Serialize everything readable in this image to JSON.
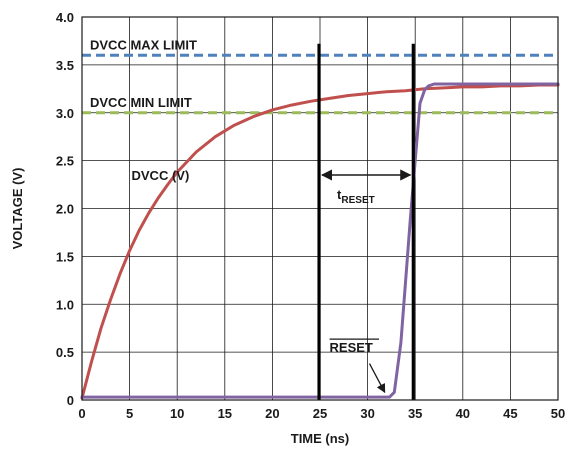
{
  "chart_data": {
    "type": "line",
    "xlabel": "TIME (ns)",
    "ylabel": "VOLTAGE (V)",
    "xlim": [
      0,
      50
    ],
    "ylim": [
      0,
      4.0
    ],
    "x_ticks": [
      "0",
      "5",
      "10",
      "15",
      "20",
      "25",
      "30",
      "35",
      "40",
      "45",
      "50"
    ],
    "y_ticks": [
      "0",
      "0.5",
      "1.0",
      "1.5",
      "2.0",
      "2.5",
      "3.0",
      "3.5",
      "4.0"
    ],
    "grid": true,
    "series": [
      {
        "name": "DVCC (V)",
        "color": "#c0504d",
        "x": [
          0,
          1,
          2,
          3,
          4,
          5,
          6,
          7,
          8,
          9,
          10,
          12,
          14,
          16,
          18,
          20,
          22,
          24,
          26,
          28,
          30,
          32,
          34,
          36,
          38,
          40,
          42,
          44,
          46,
          48,
          50
        ],
        "y": [
          0.02,
          0.4,
          0.75,
          1.05,
          1.32,
          1.56,
          1.77,
          1.95,
          2.11,
          2.25,
          2.38,
          2.59,
          2.75,
          2.87,
          2.96,
          3.03,
          3.08,
          3.12,
          3.15,
          3.18,
          3.2,
          3.22,
          3.23,
          3.25,
          3.26,
          3.27,
          3.27,
          3.28,
          3.28,
          3.29,
          3.29
        ]
      },
      {
        "name": "RESET",
        "color": "#8064a2",
        "x": [
          0,
          32.3,
          32.8,
          33.5,
          34.5,
          35.5,
          36.0,
          36.4,
          37.0,
          40,
          45,
          50
        ],
        "y": [
          0.03,
          0.03,
          0.08,
          0.6,
          1.9,
          3.1,
          3.24,
          3.28,
          3.3,
          3.3,
          3.3,
          3.3
        ]
      }
    ],
    "reference_lines": [
      {
        "label": "DVCC MAX LIMIT",
        "y": 3.6,
        "color": "#4f81bd",
        "style": "dashed"
      },
      {
        "label": "DVCC MIN LIMIT",
        "y": 3.0,
        "color": "#9bbb59",
        "style": "dashed"
      }
    ],
    "markers": [
      {
        "x": 24.9,
        "y_top": 3.72
      },
      {
        "x": 34.8,
        "y_top": 3.72
      }
    ],
    "annotations": {
      "dvcc_label": "DVCC (V)",
      "t_reset_main": "t",
      "t_reset_sub": "RESET",
      "reset_label": "RESET"
    }
  }
}
